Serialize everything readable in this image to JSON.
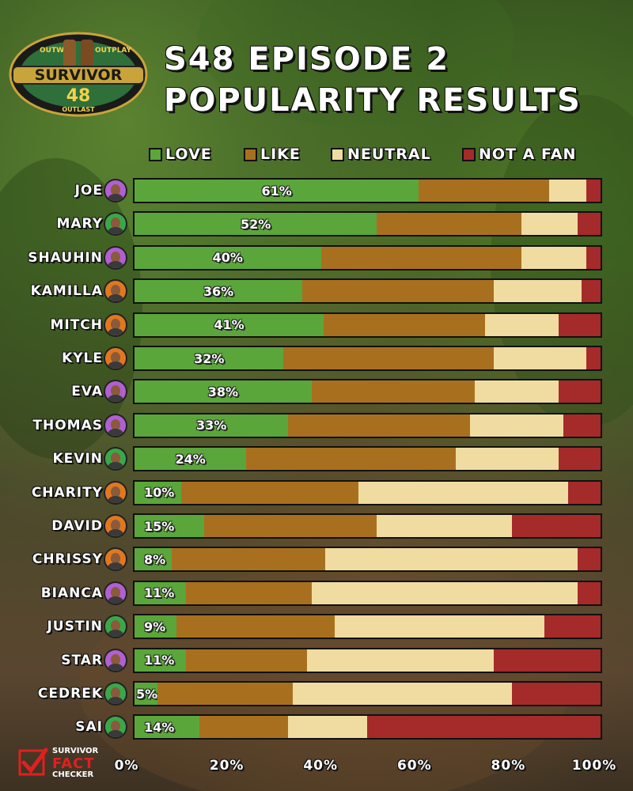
{
  "logo": {
    "top_left_text": "OUTWIT",
    "top_right_text": "OUTPLAY",
    "name": "SURVIVOR",
    "number": "48",
    "bottom_text": "OUTLAST"
  },
  "title": {
    "line1": "S48 EPISODE 2",
    "line2": "POPULARITY RESULTS"
  },
  "legend": [
    {
      "label": "LOVE",
      "color": "#5aa63a"
    },
    {
      "label": "LIKE",
      "color": "#a8701e"
    },
    {
      "label": "NEUTRAL",
      "color": "#f0dca0"
    },
    {
      "label": "NOT A FAN",
      "color": "#a52a2a"
    }
  ],
  "chart_data": {
    "type": "bar",
    "orientation": "horizontal",
    "stacked": true,
    "normalized": true,
    "categories": [
      "JOE",
      "MARY",
      "SHAUHIN",
      "KAMILLA",
      "MITCH",
      "KYLE",
      "EVA",
      "THOMAS",
      "KEVIN",
      "CHARITY",
      "DAVID",
      "CHRISSY",
      "BIANCA",
      "JUSTIN",
      "STAR",
      "CEDREK",
      "SAI"
    ],
    "series": [
      {
        "name": "LOVE",
        "values": [
          61,
          52,
          40,
          36,
          41,
          32,
          38,
          33,
          24,
          10,
          15,
          8,
          11,
          9,
          11,
          5,
          14
        ]
      },
      {
        "name": "LIKE",
        "values": [
          28,
          31,
          43,
          41,
          35,
          45,
          35,
          39,
          45,
          38,
          37,
          33,
          27,
          34,
          26,
          29,
          19
        ]
      },
      {
        "name": "NEUTRAL",
        "values": [
          8,
          12,
          14,
          19,
          16,
          20,
          18,
          20,
          22,
          45,
          29,
          54,
          57,
          45,
          40,
          47,
          17
        ]
      },
      {
        "name": "NOT A FAN",
        "values": [
          3,
          5,
          3,
          4,
          9,
          3,
          9,
          8,
          9,
          7,
          19,
          5,
          5,
          12,
          23,
          19,
          50
        ]
      }
    ],
    "data_labels": [
      "61%",
      "52%",
      "40%",
      "36%",
      "41%",
      "32%",
      "38%",
      "33%",
      "24%",
      "10%",
      "15%",
      "8%",
      "11%",
      "9%",
      "11%",
      "5%",
      "14%"
    ],
    "avatar_ring_colors": [
      "#b060d0",
      "#3aa848",
      "#b060d0",
      "#e07820",
      "#e07820",
      "#e07820",
      "#b060d0",
      "#b060d0",
      "#3aa848",
      "#e07820",
      "#e07820",
      "#e07820",
      "#b060d0",
      "#3aa848",
      "#b060d0",
      "#3aa848",
      "#3aa848"
    ],
    "xlim": [
      0,
      100
    ],
    "xticks": [
      "0%",
      "20%",
      "40%",
      "60%",
      "80%",
      "100%"
    ],
    "legend_position": "top",
    "grid": false
  },
  "watermark": {
    "small_text": "SURVIVOR",
    "big_text": "FACT",
    "bottom_text": "CHECKER"
  }
}
